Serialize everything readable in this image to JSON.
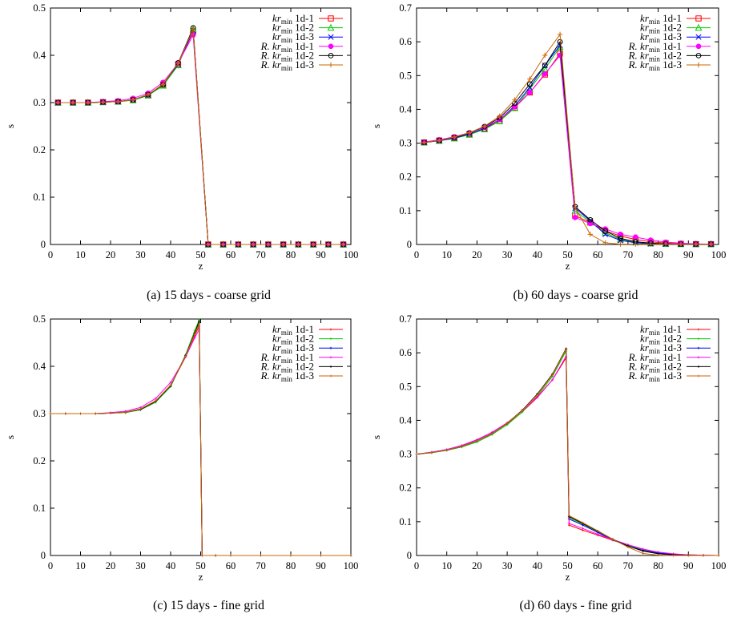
{
  "figure": {
    "series_style": [
      {
        "color": "#ff0000"
      },
      {
        "color": "#00cc00"
      },
      {
        "color": "#0000ff"
      },
      {
        "color": "#ff00ff"
      },
      {
        "color": "#000000"
      },
      {
        "color": "#cc6600"
      }
    ]
  },
  "chart_data": [
    {
      "type": "line",
      "caption": "(a)  15 days - coarse grid",
      "xlabel": "z",
      "ylabel": "s",
      "xlim": [
        0,
        100
      ],
      "ylim": [
        0,
        0.5
      ],
      "xticks": [
        "0",
        "10",
        "20",
        "30",
        "40",
        "50",
        "60",
        "70",
        "80",
        "90",
        "100"
      ],
      "yticks": [
        "0",
        "0.1",
        "0.2",
        "0.3",
        "0.4",
        "0.5"
      ],
      "legend_position": "top-right",
      "x": [
        2.5,
        7.5,
        12.5,
        17.5,
        22.5,
        27.5,
        32.5,
        37.5,
        42.5,
        47.5,
        52.5,
        57.5,
        62.5,
        67.5,
        72.5,
        77.5,
        82.5,
        87.5,
        92.5,
        97.5
      ],
      "series": [
        {
          "name": "kr",
          "name_sub": "min",
          "name_suffix": " 1d-1",
          "marker": "square",
          "values": [
            0.3,
            0.3,
            0.3,
            0.301,
            0.302,
            0.306,
            0.316,
            0.338,
            0.381,
            0.45,
            0,
            0,
            0,
            0,
            0,
            0,
            0,
            0,
            0,
            0
          ]
        },
        {
          "name": "kr",
          "name_sub": "min",
          "name_suffix": " 1d-2",
          "marker": "triangle",
          "values": [
            0.3,
            0.3,
            0.3,
            0.301,
            0.302,
            0.305,
            0.315,
            0.336,
            0.379,
            0.455,
            0,
            0,
            0,
            0,
            0,
            0,
            0,
            0,
            0,
            0
          ]
        },
        {
          "name": "kr",
          "name_sub": "min",
          "name_suffix": " 1d-3",
          "marker": "cross",
          "values": [
            0.3,
            0.3,
            0.3,
            0.301,
            0.302,
            0.306,
            0.316,
            0.339,
            0.381,
            0.452,
            0,
            0,
            0,
            0,
            0,
            0,
            0,
            0,
            0,
            0
          ]
        },
        {
          "name": "R. kr",
          "name_sub": "min",
          "name_suffix": " 1d-1",
          "marker": "filled-circle",
          "values": [
            0.3,
            0.3,
            0.3,
            0.302,
            0.304,
            0.309,
            0.32,
            0.343,
            0.383,
            0.443,
            0,
            0,
            0,
            0,
            0,
            0,
            0,
            0,
            0,
            0
          ]
        },
        {
          "name": "R. kr",
          "name_sub": "min",
          "name_suffix": " 1d-2",
          "marker": "circle",
          "values": [
            0.3,
            0.3,
            0.3,
            0.301,
            0.302,
            0.306,
            0.317,
            0.338,
            0.384,
            0.458,
            0,
            0,
            0,
            0,
            0,
            0,
            0,
            0,
            0,
            0
          ]
        },
        {
          "name": "R. kr",
          "name_sub": "min",
          "name_suffix": " 1d-3",
          "marker": "plus",
          "values": [
            0.3,
            0.3,
            0.3,
            0.301,
            0.302,
            0.306,
            0.317,
            0.339,
            0.383,
            0.455,
            0,
            0,
            0,
            0,
            0,
            0,
            0,
            0,
            0,
            0
          ]
        }
      ]
    },
    {
      "type": "line",
      "caption": "(b)  60 days - coarse grid",
      "xlabel": "z",
      "ylabel": "s",
      "xlim": [
        0,
        100
      ],
      "ylim": [
        0,
        0.7
      ],
      "xticks": [
        "0",
        "10",
        "20",
        "30",
        "40",
        "50",
        "60",
        "70",
        "80",
        "90",
        "100"
      ],
      "yticks": [
        "0",
        "0.1",
        "0.2",
        "0.3",
        "0.4",
        "0.5",
        "0.6",
        "0.7"
      ],
      "legend_position": "top-right",
      "x": [
        2.5,
        7.5,
        12.5,
        17.5,
        22.5,
        27.5,
        32.5,
        37.5,
        42.5,
        47.5,
        52.5,
        57.5,
        62.5,
        67.5,
        72.5,
        77.5,
        82.5,
        87.5,
        92.5,
        97.5
      ],
      "series": [
        {
          "name": "kr",
          "name_sub": "min",
          "name_suffix": " 1d-1",
          "marker": "square",
          "values": [
            0.302,
            0.308,
            0.316,
            0.327,
            0.343,
            0.366,
            0.405,
            0.45,
            0.503,
            0.565,
            0.085,
            0.065,
            0.04,
            0.025,
            0.015,
            0.008,
            0.004,
            0.002,
            0.001,
            0.001
          ]
        },
        {
          "name": "kr",
          "name_sub": "min",
          "name_suffix": " 1d-2",
          "marker": "triangle",
          "values": [
            0.302,
            0.307,
            0.314,
            0.325,
            0.341,
            0.365,
            0.404,
            0.46,
            0.52,
            0.585,
            0.1,
            0.066,
            0.035,
            0.015,
            0.007,
            0.003,
            0.002,
            0.001,
            0.001,
            0.001
          ]
        },
        {
          "name": "kr",
          "name_sub": "min",
          "name_suffix": " 1d-3",
          "marker": "cross",
          "values": [
            0.302,
            0.307,
            0.315,
            0.327,
            0.344,
            0.37,
            0.41,
            0.465,
            0.53,
            0.59,
            0.108,
            0.07,
            0.03,
            0.012,
            0.005,
            0.002,
            0.001,
            0.001,
            0.001,
            0.001
          ]
        },
        {
          "name": "R. kr",
          "name_sub": "min",
          "name_suffix": " 1d-1",
          "marker": "filled-circle",
          "values": [
            0.303,
            0.31,
            0.319,
            0.331,
            0.347,
            0.37,
            0.407,
            0.45,
            0.505,
            0.56,
            0.08,
            0.062,
            0.046,
            0.03,
            0.022,
            0.013,
            0.007,
            0.004,
            0.002,
            0.001
          ]
        },
        {
          "name": "R. kr",
          "name_sub": "min",
          "name_suffix": " 1d-2",
          "marker": "circle",
          "values": [
            0.302,
            0.308,
            0.317,
            0.33,
            0.349,
            0.375,
            0.418,
            0.475,
            0.53,
            0.6,
            0.112,
            0.073,
            0.04,
            0.018,
            0.008,
            0.004,
            0.002,
            0.001,
            0.001,
            0.001
          ]
        },
        {
          "name": "R. kr",
          "name_sub": "min",
          "name_suffix": " 1d-3",
          "marker": "plus",
          "values": [
            0.302,
            0.308,
            0.318,
            0.331,
            0.35,
            0.38,
            0.428,
            0.49,
            0.56,
            0.622,
            0.11,
            0.03,
            0.005,
            0.001,
            0.001,
            0.001,
            0.001,
            0.001,
            0.001,
            0.001
          ]
        }
      ]
    },
    {
      "type": "line",
      "caption": "(c)  15 days - fine grid",
      "xlabel": "z",
      "ylabel": "s",
      "xlim": [
        0,
        100
      ],
      "ylim": [
        0,
        0.5
      ],
      "xticks": [
        "0",
        "10",
        "20",
        "30",
        "40",
        "50",
        "60",
        "70",
        "80",
        "90",
        "100"
      ],
      "yticks": [
        "0",
        "0.1",
        "0.2",
        "0.3",
        "0.4",
        "0.5"
      ],
      "legend_position": "top-right",
      "x": [
        0,
        5,
        10,
        15,
        20,
        25,
        30,
        35,
        40,
        45,
        48,
        49.5,
        50.5,
        55,
        60,
        70,
        80,
        90,
        100
      ],
      "series": [
        {
          "name": "kr",
          "name_sub": "min",
          "name_suffix": " 1d-1",
          "marker": "small-plus",
          "values": [
            0.3,
            0.3,
            0.3,
            0.3,
            0.301,
            0.303,
            0.31,
            0.327,
            0.36,
            0.42,
            0.465,
            0.485,
            0,
            0,
            0,
            0,
            0,
            0,
            0
          ]
        },
        {
          "name": "kr",
          "name_sub": "min",
          "name_suffix": " 1d-2",
          "marker": "small-plus",
          "values": [
            0.3,
            0.3,
            0.3,
            0.3,
            0.301,
            0.302,
            0.308,
            0.324,
            0.357,
            0.425,
            0.475,
            0.498,
            0,
            0,
            0,
            0,
            0,
            0,
            0
          ]
        },
        {
          "name": "kr",
          "name_sub": "min",
          "name_suffix": " 1d-3",
          "marker": "small-plus",
          "values": [
            0.3,
            0.3,
            0.3,
            0.3,
            0.301,
            0.303,
            0.309,
            0.326,
            0.359,
            0.423,
            0.47,
            0.492,
            0,
            0,
            0,
            0,
            0,
            0,
            0
          ]
        },
        {
          "name": "R. kr",
          "name_sub": "min",
          "name_suffix": " 1d-1",
          "marker": "small-plus",
          "values": [
            0.3,
            0.3,
            0.3,
            0.3,
            0.302,
            0.305,
            0.313,
            0.332,
            0.366,
            0.42,
            0.46,
            0.478,
            0,
            0,
            0,
            0,
            0,
            0,
            0
          ]
        },
        {
          "name": "R. kr",
          "name_sub": "min",
          "name_suffix": " 1d-2",
          "marker": "small-plus",
          "values": [
            0.3,
            0.3,
            0.3,
            0.3,
            0.301,
            0.303,
            0.309,
            0.326,
            0.359,
            0.423,
            0.47,
            0.495,
            0,
            0,
            0,
            0,
            0,
            0,
            0
          ]
        },
        {
          "name": "R. kr",
          "name_sub": "min",
          "name_suffix": " 1d-3",
          "marker": "small-plus",
          "values": [
            0.3,
            0.3,
            0.3,
            0.3,
            0.301,
            0.303,
            0.31,
            0.327,
            0.36,
            0.422,
            0.468,
            0.49,
            0,
            0,
            0,
            0,
            0,
            0,
            0
          ]
        }
      ]
    },
    {
      "type": "line",
      "caption": "(d)  60 days - fine grid",
      "xlabel": "z",
      "ylabel": "s",
      "xlim": [
        0,
        100
      ],
      "ylim": [
        0,
        0.7
      ],
      "xticks": [
        "0",
        "10",
        "20",
        "30",
        "40",
        "50",
        "60",
        "70",
        "80",
        "90",
        "100"
      ],
      "yticks": [
        "0",
        "0.1",
        "0.2",
        "0.3",
        "0.4",
        "0.5",
        "0.6",
        "0.7"
      ],
      "legend_position": "top-right",
      "x": [
        0,
        5,
        10,
        15,
        20,
        25,
        30,
        35,
        40,
        45,
        49.5,
        50.5,
        55,
        60,
        65,
        70,
        75,
        80,
        85,
        90,
        95,
        100
      ],
      "series": [
        {
          "name": "kr",
          "name_sub": "min",
          "name_suffix": " 1d-1",
          "marker": "small-plus",
          "values": [
            0.3,
            0.305,
            0.313,
            0.324,
            0.34,
            0.362,
            0.39,
            0.425,
            0.468,
            0.52,
            0.585,
            0.09,
            0.075,
            0.06,
            0.045,
            0.03,
            0.018,
            0.009,
            0.004,
            0.002,
            0.001,
            0.0
          ]
        },
        {
          "name": "kr",
          "name_sub": "min",
          "name_suffix": " 1d-2",
          "marker": "small-plus",
          "values": [
            0.3,
            0.304,
            0.311,
            0.321,
            0.336,
            0.358,
            0.387,
            0.425,
            0.472,
            0.53,
            0.605,
            0.112,
            0.093,
            0.07,
            0.048,
            0.03,
            0.016,
            0.008,
            0.004,
            0.002,
            0.001,
            0.0
          ]
        },
        {
          "name": "kr",
          "name_sub": "min",
          "name_suffix": " 1d-3",
          "marker": "small-plus",
          "values": [
            0.3,
            0.305,
            0.312,
            0.323,
            0.339,
            0.361,
            0.391,
            0.43,
            0.478,
            0.535,
            0.61,
            0.108,
            0.09,
            0.068,
            0.046,
            0.028,
            0.015,
            0.007,
            0.003,
            0.001,
            0.0,
            0.0
          ]
        },
        {
          "name": "R. kr",
          "name_sub": "min",
          "name_suffix": " 1d-1",
          "marker": "small-plus",
          "values": [
            0.3,
            0.306,
            0.314,
            0.326,
            0.343,
            0.365,
            0.393,
            0.428,
            0.47,
            0.52,
            0.59,
            0.095,
            0.08,
            0.063,
            0.047,
            0.032,
            0.019,
            0.01,
            0.005,
            0.002,
            0.001,
            0.0
          ]
        },
        {
          "name": "R. kr",
          "name_sub": "min",
          "name_suffix": " 1d-2",
          "marker": "small-plus",
          "values": [
            0.3,
            0.305,
            0.312,
            0.323,
            0.339,
            0.361,
            0.391,
            0.43,
            0.478,
            0.537,
            0.612,
            0.115,
            0.095,
            0.072,
            0.048,
            0.028,
            0.013,
            0.005,
            0.002,
            0.001,
            0.0,
            0.0
          ]
        },
        {
          "name": "R. kr",
          "name_sub": "min",
          "name_suffix": " 1d-3",
          "marker": "small-plus",
          "values": [
            0.3,
            0.305,
            0.312,
            0.323,
            0.339,
            0.361,
            0.391,
            0.429,
            0.476,
            0.535,
            0.61,
            0.118,
            0.097,
            0.073,
            0.048,
            0.025,
            0.006,
            0.001,
            0.0,
            0.0,
            0.0,
            0.0
          ]
        }
      ]
    }
  ]
}
